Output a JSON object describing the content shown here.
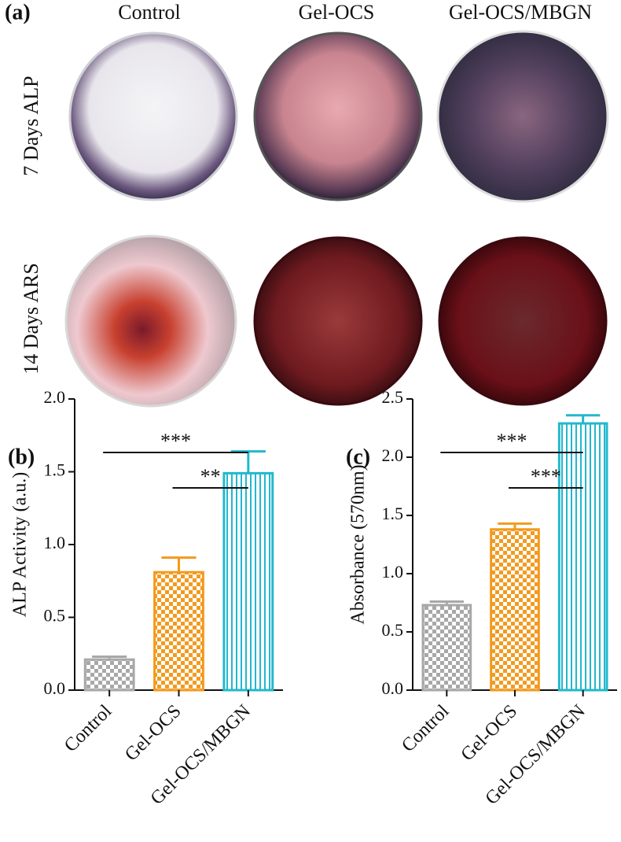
{
  "figure": {
    "panel_label": "(a)",
    "columns": [
      "Control",
      "Gel-OCS",
      "Gel-OCS/MBGN"
    ],
    "rows": [
      "7 Days ALP",
      "14 Days ARS"
    ]
  },
  "chart_data": [
    {
      "type": "bar",
      "panel_label": "(b)",
      "y_label": "ALP Activity (a.u.)",
      "categories": [
        "Control",
        "Gel-OCS",
        "Gel-OCS/MBGN"
      ],
      "values": [
        0.21,
        0.81,
        1.49
      ],
      "errors": [
        0.02,
        0.1,
        0.15
      ],
      "colors": [
        "#a8a8a8",
        "#f39a1e",
        "#22b8cc"
      ],
      "patterns": [
        "checker",
        "checker",
        "stripes"
      ],
      "ylim": [
        0,
        2.0
      ],
      "yticks": [
        {
          "value": 0,
          "label": "0.0"
        },
        0.5,
        {
          "value": 1,
          "label": "1.0"
        },
        1.5,
        {
          "value": 2,
          "label": "2.0"
        }
      ],
      "annotations": [
        {
          "text": "***",
          "between": [
            "Control",
            "Gel-OCS/MBGN"
          ]
        },
        {
          "text": "**",
          "between": [
            "Gel-OCS",
            "Gel-OCS/MBGN"
          ]
        }
      ]
    },
    {
      "type": "bar",
      "panel_label": "(c)",
      "y_label": "Absorbance (570nm)",
      "categories": [
        "Control",
        "Gel-OCS",
        "Gel-OCS/MBGN"
      ],
      "values": [
        0.73,
        1.38,
        2.29
      ],
      "errors": [
        0.03,
        0.05,
        0.07
      ],
      "colors": [
        "#a8a8a8",
        "#f39a1e",
        "#22b8cc"
      ],
      "patterns": [
        "checker",
        "checker",
        "stripes"
      ],
      "ylim": [
        0,
        2.5
      ],
      "yticks": [
        {
          "value": 0,
          "label": "0.0"
        },
        0.5,
        {
          "value": 1,
          "label": "1.0"
        },
        1.5,
        {
          "value": 2,
          "label": "2.0"
        },
        2.5
      ],
      "annotations": [
        {
          "text": "***",
          "between": [
            "Control",
            "Gel-OCS/MBGN"
          ]
        },
        {
          "text": "***",
          "between": [
            "Gel-OCS",
            "Gel-OCS/MBGN"
          ]
        }
      ]
    }
  ]
}
